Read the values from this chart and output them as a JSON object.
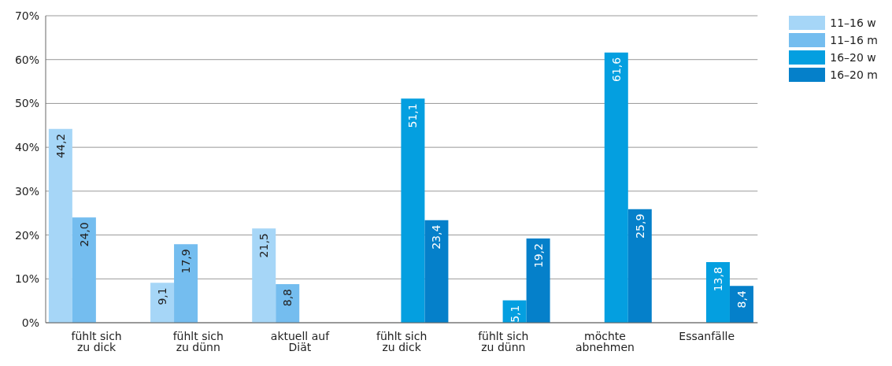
{
  "chart_data": {
    "type": "bar",
    "categories": [
      "fühlt sich zu dick",
      "fühlt sich zu dünn",
      "aktuell auf Diät",
      "fühlt sich zu dick",
      "fühlt sich zu dünn",
      "möchte abnehmen",
      "Essanfälle"
    ],
    "series": [
      {
        "name": "11–16 w",
        "color": "#a6d6f7",
        "values": [
          44.2,
          9.1,
          21.5,
          null,
          null,
          null,
          null
        ],
        "value_labels": [
          "44,2",
          "9,1",
          "21,5",
          null,
          null,
          null,
          null
        ]
      },
      {
        "name": "11–16 m",
        "color": "#74bdef",
        "values": [
          24.0,
          17.9,
          8.8,
          null,
          null,
          null,
          null
        ],
        "value_labels": [
          "24,0",
          "17,9",
          "8,8",
          null,
          null,
          null,
          null
        ]
      },
      {
        "name": "16–20 w",
        "color": "#049fe0",
        "values": [
          null,
          null,
          null,
          51.1,
          5.1,
          61.6,
          13.8
        ],
        "value_labels": [
          null,
          null,
          null,
          "51,1",
          "5,1",
          "61,6",
          "13,8"
        ]
      },
      {
        "name": "16–20 m",
        "color": "#0580ca",
        "values": [
          null,
          null,
          null,
          23.4,
          19.2,
          25.9,
          8.4
        ],
        "value_labels": [
          null,
          null,
          null,
          "23,4",
          "19,2",
          "25,9",
          "8,4"
        ]
      }
    ],
    "ylim": [
      0,
      70
    ],
    "yticks": [
      {
        "value": 0,
        "label": "0%"
      },
      {
        "value": 10,
        "label": "10%"
      },
      {
        "value": 20,
        "label": "20%"
      },
      {
        "value": 30,
        "label": "30%"
      },
      {
        "value": 40,
        "label": "40%"
      },
      {
        "value": 50,
        "label": "50%"
      },
      {
        "value": 60,
        "label": "60%"
      },
      {
        "value": 70,
        "label": "70%"
      }
    ],
    "grid": "y",
    "legend": "top right"
  }
}
